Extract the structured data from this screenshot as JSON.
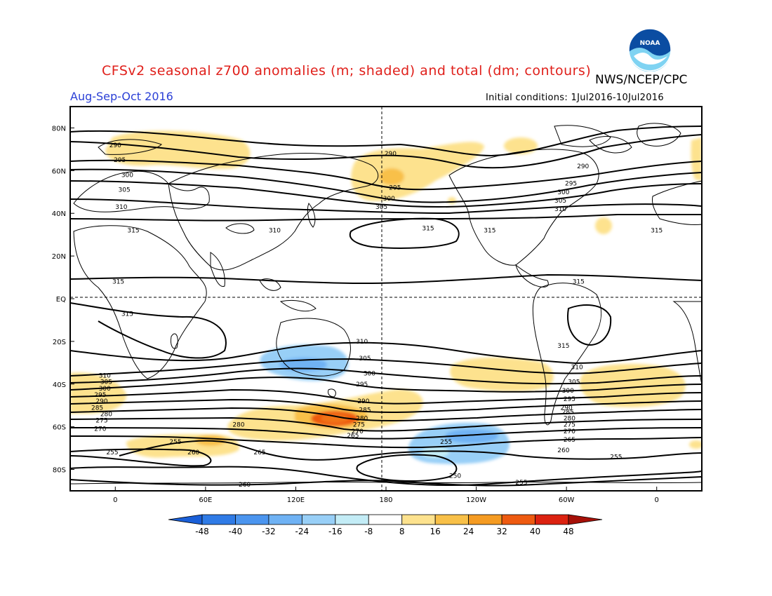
{
  "header": {
    "title": "CFSv2 seasonal z700 anomalies (m; shaded) and total (dm; contours)",
    "agency": "NWS/NCEP/CPC",
    "season": "Aug-Sep-Oct 2016",
    "initial_conditions": "Initial conditions: 1Jul2016-10Jul2016",
    "logo_text": "NOAA"
  },
  "axes": {
    "lat_labels": [
      "80N",
      "60N",
      "40N",
      "20N",
      "EQ",
      "20S",
      "40S",
      "60S",
      "80S"
    ],
    "lat_values": [
      80,
      60,
      40,
      20,
      0,
      -20,
      -40,
      -60,
      -80
    ],
    "lon_labels": [
      "0",
      "60E",
      "120E",
      "180",
      "120W",
      "60W",
      "0"
    ],
    "lon_values": [
      0,
      60,
      120,
      180,
      240,
      300,
      360
    ],
    "lon_range": [
      -30,
      390
    ],
    "lat_range": [
      -90,
      90
    ]
  },
  "colorbar": {
    "labels": [
      "-48",
      "-40",
      "-32",
      "-24",
      "-16",
      "-8",
      "8",
      "16",
      "24",
      "32",
      "40",
      "48"
    ],
    "colors": [
      "#1a5fd8",
      "#2f7be6",
      "#4b95ef",
      "#6fb2f4",
      "#98cff7",
      "#c3ecf6",
      "#ffffff",
      "#fde28e",
      "#f8c048",
      "#f59b22",
      "#ee5a10",
      "#dc2210",
      "#a61008"
    ]
  },
  "contour_labels": [
    {
      "text": "290",
      "lon": 0,
      "lat": 72
    },
    {
      "text": "295",
      "lon": 3,
      "lat": 65
    },
    {
      "text": "300",
      "lon": 8,
      "lat": 58
    },
    {
      "text": "305",
      "lon": 6,
      "lat": 51
    },
    {
      "text": "310",
      "lon": 4,
      "lat": 43
    },
    {
      "text": "315",
      "lon": 12,
      "lat": 32
    },
    {
      "text": "315",
      "lon": 2,
      "lat": 8
    },
    {
      "text": "315",
      "lon": 8,
      "lat": -7
    },
    {
      "text": "290",
      "lon": 183,
      "lat": 68
    },
    {
      "text": "295",
      "lon": 186,
      "lat": 52
    },
    {
      "text": "300",
      "lon": 182,
      "lat": 47
    },
    {
      "text": "305",
      "lon": 177,
      "lat": 43
    },
    {
      "text": "310",
      "lon": 106,
      "lat": 32
    },
    {
      "text": "315",
      "lon": 208,
      "lat": 33
    },
    {
      "text": "315",
      "lon": 249,
      "lat": 32
    },
    {
      "text": "290",
      "lon": 311,
      "lat": 62
    },
    {
      "text": "295",
      "lon": 303,
      "lat": 54
    },
    {
      "text": "300",
      "lon": 298,
      "lat": 50
    },
    {
      "text": "305",
      "lon": 296,
      "lat": 46
    },
    {
      "text": "310",
      "lon": 296,
      "lat": 42
    },
    {
      "text": "315",
      "lon": 360,
      "lat": 32
    },
    {
      "text": "315",
      "lon": 308,
      "lat": 8
    },
    {
      "text": "315",
      "lon": 298,
      "lat": -22
    },
    {
      "text": "310",
      "lon": 307,
      "lat": -32
    },
    {
      "text": "310",
      "lon": 164,
      "lat": -20
    },
    {
      "text": "305",
      "lon": 166,
      "lat": -28
    },
    {
      "text": "300",
      "lon": 169,
      "lat": -35
    },
    {
      "text": "295",
      "lon": 164,
      "lat": -40
    },
    {
      "text": "290",
      "lon": 165,
      "lat": -48
    },
    {
      "text": "285",
      "lon": 166,
      "lat": -52
    },
    {
      "text": "280",
      "lon": 164,
      "lat": -56
    },
    {
      "text": "275",
      "lon": 162,
      "lat": -59
    },
    {
      "text": "270",
      "lon": 161,
      "lat": -62
    },
    {
      "text": "265",
      "lon": 158,
      "lat": -64
    },
    {
      "text": "310",
      "lon": -7,
      "lat": -36
    },
    {
      "text": "305",
      "lon": -6,
      "lat": -39
    },
    {
      "text": "300",
      "lon": -7,
      "lat": -42
    },
    {
      "text": "295",
      "lon": -10,
      "lat": -45
    },
    {
      "text": "290",
      "lon": -9,
      "lat": -48
    },
    {
      "text": "285",
      "lon": -12,
      "lat": -51
    },
    {
      "text": "280",
      "lon": -6,
      "lat": -54
    },
    {
      "text": "275",
      "lon": -9,
      "lat": -57
    },
    {
      "text": "270",
      "lon": -10,
      "lat": -61
    },
    {
      "text": "280",
      "lon": 82,
      "lat": -59
    },
    {
      "text": "255",
      "lon": 40,
      "lat": -67
    },
    {
      "text": "255",
      "lon": -2,
      "lat": -72
    },
    {
      "text": "260",
      "lon": 52,
      "lat": -72
    },
    {
      "text": "265",
      "lon": 96,
      "lat": -72
    },
    {
      "text": "260",
      "lon": 86,
      "lat": -87
    },
    {
      "text": "255",
      "lon": 220,
      "lat": -67
    },
    {
      "text": "250",
      "lon": 226,
      "lat": -83
    },
    {
      "text": "255",
      "lon": 270,
      "lat": -86
    },
    {
      "text": "260",
      "lon": 298,
      "lat": -71
    },
    {
      "text": "255",
      "lon": 333,
      "lat": -74
    },
    {
      "text": "300",
      "lon": 301,
      "lat": -43
    },
    {
      "text": "295",
      "lon": 302,
      "lat": -47
    },
    {
      "text": "290",
      "lon": 300,
      "lat": -51
    },
    {
      "text": "285",
      "lon": 301,
      "lat": -53
    },
    {
      "text": "280",
      "lon": 302,
      "lat": -56
    },
    {
      "text": "275",
      "lon": 302,
      "lat": -59
    },
    {
      "text": "270",
      "lon": 302,
      "lat": -62
    },
    {
      "text": "265",
      "lon": 302,
      "lat": -66
    },
    {
      "text": "305",
      "lon": 305,
      "lat": -39
    }
  ]
}
